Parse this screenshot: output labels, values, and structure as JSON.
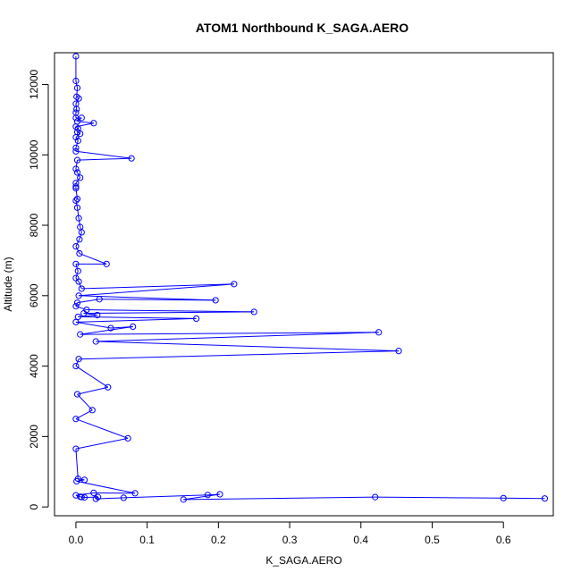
{
  "chart_data": {
    "type": "line",
    "title": "ATOM1 Northbound K_SAGA.AERO",
    "xlabel": "K_SAGA.AERO",
    "ylabel": "Altitude (m)",
    "xlim": [
      -0.03,
      0.67
    ],
    "ylim": [
      -250,
      12900
    ],
    "xticks": [
      0.0,
      0.1,
      0.2,
      0.3,
      0.4,
      0.5,
      0.6
    ],
    "xtick_labels": [
      "0.0",
      "0.1",
      "0.2",
      "0.3",
      "0.4",
      "0.5",
      "0.6"
    ],
    "yticks": [
      0,
      2000,
      4000,
      6000,
      8000,
      10000,
      12000
    ],
    "ytick_labels": [
      "0",
      "2000",
      "4000",
      "6000",
      "8000",
      "10000",
      "12000"
    ],
    "grid": false,
    "legend": "none",
    "series": [
      {
        "color": "#0000ff",
        "marker": "open-circle",
        "points": [
          [
            0.0,
            12800
          ],
          [
            0.0,
            12100
          ],
          [
            0.002,
            11900
          ],
          [
            0.001,
            11650
          ],
          [
            0.004,
            11600
          ],
          [
            0.0,
            11450
          ],
          [
            0.001,
            11300
          ],
          [
            0.0,
            11200
          ],
          [
            0.0,
            11050
          ],
          [
            0.008,
            11050
          ],
          [
            0.002,
            10950
          ],
          [
            0.025,
            10900
          ],
          [
            0.0,
            10800
          ],
          [
            0.003,
            10750
          ],
          [
            0.002,
            10650
          ],
          [
            0.006,
            10600
          ],
          [
            0.0,
            10500
          ],
          [
            0.003,
            10400
          ],
          [
            0.0,
            10200
          ],
          [
            0.0,
            10100
          ],
          [
            0.078,
            9900
          ],
          [
            0.002,
            9850
          ],
          [
            0.0,
            9600
          ],
          [
            0.002,
            9500
          ],
          [
            0.006,
            9350
          ],
          [
            0.0,
            9200
          ],
          [
            0.0,
            9100
          ],
          [
            0.0,
            9050
          ],
          [
            0.002,
            8750
          ],
          [
            0.0,
            8700
          ],
          [
            0.002,
            8500
          ],
          [
            0.004,
            8200
          ],
          [
            0.006,
            7950
          ],
          [
            0.008,
            7800
          ],
          [
            0.005,
            7600
          ],
          [
            0.0,
            7400
          ],
          [
            0.005,
            7200
          ],
          [
            0.043,
            6900
          ],
          [
            0.0,
            6900
          ],
          [
            0.003,
            6700
          ],
          [
            0.0,
            6500
          ],
          [
            0.004,
            6400
          ],
          [
            0.008,
            6200
          ],
          [
            0.222,
            6330
          ],
          [
            0.004,
            6000
          ],
          [
            0.196,
            5870
          ],
          [
            0.033,
            5900
          ],
          [
            0.002,
            5800
          ],
          [
            0.0,
            5700
          ],
          [
            0.015,
            5600
          ],
          [
            0.25,
            5540
          ],
          [
            0.011,
            5500
          ],
          [
            0.03,
            5450
          ],
          [
            0.003,
            5400
          ],
          [
            0.169,
            5350
          ],
          [
            0.0,
            5250
          ],
          [
            0.049,
            5080
          ],
          [
            0.08,
            5120
          ],
          [
            0.006,
            4900
          ],
          [
            0.425,
            4960
          ],
          [
            0.028,
            4700
          ],
          [
            0.453,
            4430
          ],
          [
            0.004,
            4200
          ],
          [
            0.0,
            4000
          ],
          [
            0.045,
            3400
          ],
          [
            0.002,
            3200
          ],
          [
            0.023,
            2750
          ],
          [
            0.0,
            2500
          ],
          [
            0.073,
            1950
          ],
          [
            0.0,
            1650
          ],
          [
            0.003,
            800
          ],
          [
            0.012,
            770
          ],
          [
            0.001,
            730
          ],
          [
            0.083,
            390
          ],
          [
            0.025,
            400
          ],
          [
            0.0,
            330
          ],
          [
            0.006,
            290
          ],
          [
            0.008,
            280
          ],
          [
            0.012,
            270
          ],
          [
            0.031,
            280
          ],
          [
            0.028,
            230
          ],
          [
            0.067,
            260
          ],
          [
            0.185,
            340
          ],
          [
            0.202,
            360
          ],
          [
            0.151,
            210
          ],
          [
            0.42,
            280
          ],
          [
            0.6,
            250
          ],
          [
            0.658,
            240
          ]
        ]
      }
    ]
  }
}
